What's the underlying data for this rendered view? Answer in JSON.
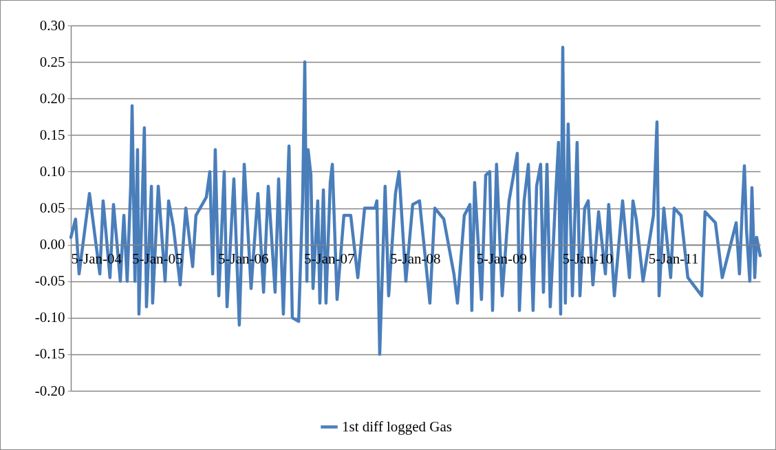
{
  "chart_data": {
    "type": "line",
    "x": [
      "2004-01-05",
      "2004-01-25",
      "2004-02-09",
      "2004-03-24",
      "2004-05-07",
      "2004-05-21",
      "2004-06-19",
      "2004-07-04",
      "2004-08-02",
      "2004-08-17",
      "2004-08-31",
      "2004-09-15",
      "2004-09-21",
      "2004-10-03",
      "2004-10-14",
      "2004-10-20",
      "2004-11-12",
      "2004-11-21",
      "2004-12-12",
      "2004-12-17",
      "2005-01-10",
      "2005-02-08",
      "2005-02-23",
      "2005-03-15",
      "2005-04-13",
      "2005-05-07",
      "2005-06-05",
      "2005-06-19",
      "2005-08-02",
      "2005-08-17",
      "2005-08-29",
      "2005-09-09",
      "2005-09-24",
      "2005-10-17",
      "2005-10-29",
      "2005-11-27",
      "2005-12-20",
      "2006-01-10",
      "2006-02-08",
      "2006-03-09",
      "2006-04-02",
      "2006-04-22",
      "2006-05-21",
      "2006-06-05",
      "2006-06-25",
      "2006-07-19",
      "2006-08-02",
      "2006-08-29",
      "2006-09-15",
      "2006-09-24",
      "2006-10-03",
      "2006-10-08",
      "2006-10-20",
      "2006-10-29",
      "2006-11-18",
      "2006-11-27",
      "2006-12-12",
      "2006-12-23",
      "2007-01-10",
      "2007-01-19",
      "2007-02-08",
      "2007-03-09",
      "2007-04-07",
      "2007-05-07",
      "2007-06-05",
      "2007-07-19",
      "2007-07-27",
      "2007-08-08",
      "2007-08-31",
      "2007-09-15",
      "2007-10-14",
      "2007-10-29",
      "2007-11-27",
      "2007-12-26",
      "2008-01-24",
      "2008-03-08",
      "2008-03-29",
      "2008-05-06",
      "2008-06-18",
      "2008-07-03",
      "2008-08-01",
      "2008-08-25",
      "2008-09-02",
      "2008-09-14",
      "2008-10-13",
      "2008-10-31",
      "2008-11-17",
      "2008-11-29",
      "2008-12-16",
      "2009-01-09",
      "2009-02-07",
      "2009-03-14",
      "2009-03-23",
      "2009-04-12",
      "2009-04-30",
      "2009-05-20",
      "2009-06-04",
      "2009-06-21",
      "2009-07-03",
      "2009-07-18",
      "2009-08-01",
      "2009-08-25",
      "2009-09-05",
      "2009-09-14",
      "2009-09-23",
      "2009-10-04",
      "2009-10-16",
      "2009-11-03",
      "2009-11-23",
      "2009-12-05",
      "2009-12-25",
      "2010-01-09",
      "2010-01-29",
      "2010-02-22",
      "2010-03-23",
      "2010-04-06",
      "2010-04-30",
      "2010-06-04",
      "2010-07-03",
      "2010-07-18",
      "2010-08-01",
      "2010-08-30",
      "2010-10-13",
      "2010-10-28",
      "2010-11-06",
      "2010-11-26",
      "2010-12-25",
      "2011-01-09",
      "2011-02-07",
      "2011-03-08",
      "2011-05-06",
      "2011-05-20",
      "2011-07-03",
      "2011-08-01",
      "2011-09-29",
      "2011-10-13",
      "2011-10-25",
      "2011-11-03",
      "2011-11-12",
      "2011-11-26",
      "2011-12-05",
      "2011-12-17",
      "2011-12-25",
      "2012-01-09"
    ],
    "series": [
      {
        "name": "1st diff logged Gas",
        "color": "#4a7ebb",
        "values": [
          0.01,
          0.035,
          -0.04,
          0.07,
          -0.04,
          0.06,
          -0.045,
          0.055,
          -0.05,
          0.04,
          -0.05,
          0.08,
          0.19,
          -0.05,
          0.13,
          -0.095,
          0.16,
          -0.085,
          0.08,
          -0.08,
          0.08,
          -0.05,
          0.06,
          0.025,
          -0.055,
          0.05,
          -0.03,
          0.04,
          0.065,
          0.1,
          -0.04,
          0.13,
          -0.07,
          0.1,
          -0.085,
          0.09,
          -0.11,
          0.11,
          -0.06,
          0.07,
          -0.065,
          0.08,
          -0.065,
          0.09,
          -0.095,
          0.135,
          -0.1,
          -0.105,
          0.065,
          0.25,
          -0.05,
          0.13,
          0.095,
          -0.06,
          0.06,
          -0.08,
          0.075,
          -0.08,
          0.085,
          0.11,
          -0.075,
          0.04,
          0.04,
          -0.045,
          0.05,
          0.05,
          0.06,
          -0.15,
          0.08,
          -0.07,
          0.07,
          0.1,
          -0.05,
          0.055,
          0.06,
          -0.08,
          0.05,
          0.035,
          -0.04,
          -0.08,
          0.04,
          0.055,
          -0.09,
          0.085,
          -0.075,
          0.095,
          0.1,
          -0.09,
          0.11,
          -0.07,
          0.06,
          0.125,
          -0.09,
          0.06,
          0.11,
          -0.09,
          0.08,
          0.11,
          -0.065,
          0.11,
          -0.085,
          0.075,
          0.14,
          -0.095,
          0.27,
          -0.08,
          0.165,
          -0.07,
          0.14,
          -0.07,
          0.05,
          0.06,
          -0.055,
          0.045,
          -0.04,
          0.055,
          -0.07,
          0.06,
          -0.045,
          0.06,
          0.035,
          -0.05,
          0.04,
          0.168,
          -0.07,
          0.05,
          -0.045,
          0.05,
          0.04,
          -0.045,
          -0.07,
          0.045,
          0.03,
          -0.045,
          0.03,
          -0.04,
          0.05,
          0.108,
          0.02,
          -0.05,
          0.078,
          -0.045,
          0.01,
          -0.015
        ]
      }
    ],
    "xlim": [
      "2004-01-05",
      "2012-01-09"
    ],
    "xticks": [
      {
        "value": "2004-01-05",
        "label": "5-Jan-04"
      },
      {
        "value": "2005-01-05",
        "label": "5-Jan-05"
      },
      {
        "value": "2006-01-05",
        "label": "5-Jan-06"
      },
      {
        "value": "2007-01-05",
        "label": "5-Jan-07"
      },
      {
        "value": "2008-01-05",
        "label": "5-Jan-08"
      },
      {
        "value": "2009-01-05",
        "label": "5-Jan-09"
      },
      {
        "value": "2010-01-05",
        "label": "5-Jan-10"
      },
      {
        "value": "2011-01-05",
        "label": "5-Jan-11"
      }
    ],
    "ylim": [
      -0.2,
      0.3
    ],
    "yticks": [
      {
        "value": -0.2,
        "label": "-0.20"
      },
      {
        "value": -0.15,
        "label": "-0.15"
      },
      {
        "value": -0.1,
        "label": "-0.10"
      },
      {
        "value": -0.05,
        "label": "-0.05"
      },
      {
        "value": 0,
        "label": "0.00"
      },
      {
        "value": 0.05,
        "label": "0.05"
      },
      {
        "value": 0.1,
        "label": "0.10"
      },
      {
        "value": 0.15,
        "label": "0.15"
      },
      {
        "value": 0.2,
        "label": "0.20"
      },
      {
        "value": 0.25,
        "label": "0.25"
      },
      {
        "value": 0.3,
        "label": "0.30"
      }
    ],
    "grid": "y",
    "legend": "bottom",
    "marker": "none",
    "line_style": "solid"
  }
}
